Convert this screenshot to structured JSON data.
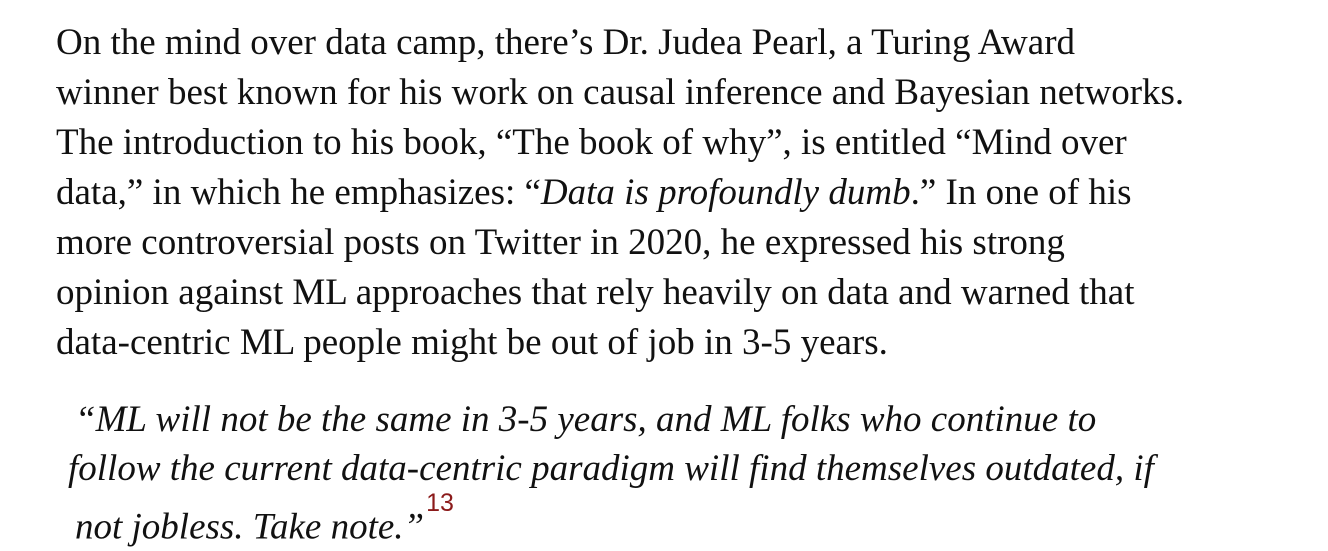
{
  "paragraph": {
    "line1": "On the mind over data camp, there’s Dr. Judea Pearl, a Turing Award",
    "line2": "winner best known for his work on causal inference and Bayesian networks.",
    "line3": "The introduction to his book, “The book of why”, is entitled “Mind over",
    "line4_prefix": "data,” in which he emphasizes: “",
    "line4_emphasis": "Data is profoundly dumb",
    "line4_suffix": ".” In one of his",
    "line5": "more controversial posts on Twitter in 2020, he expressed his strong",
    "line6": "opinion against ML approaches that rely heavily on data and warned that",
    "line7": "data-centric ML people might be out of job in 3-5 years."
  },
  "quote": {
    "line1": "“ML will not be the same in 3-5 years, and ML folks who continue to",
    "line2": "follow the current data-centric paradigm will find themselves outdated, if",
    "line3": "not jobless. Take note.”",
    "footnote": "13"
  },
  "colors": {
    "text": "#111111",
    "footnote": "#8b1a1a",
    "background": "#ffffff"
  }
}
